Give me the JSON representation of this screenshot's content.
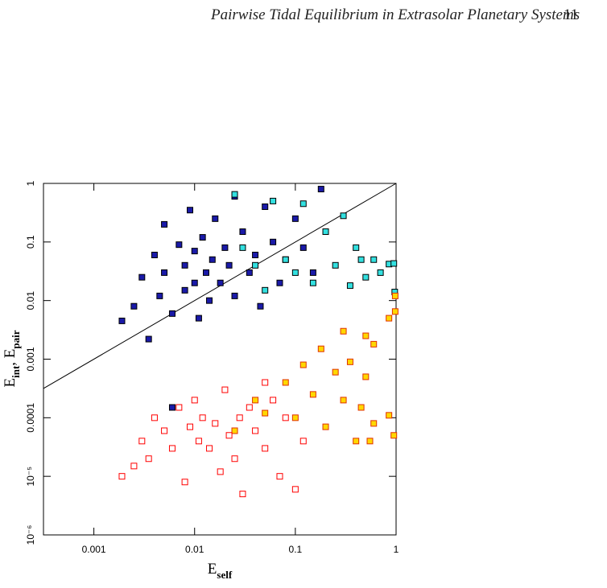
{
  "header": {
    "title": "Pairwise Tidal Equilibrium in Extrasolar Planetary Systems",
    "page": "11"
  },
  "chart_data": {
    "type": "scatter",
    "log_x": true,
    "log_y": true,
    "xlabel": {
      "text": "E",
      "sub": "self"
    },
    "ylabel": [
      {
        "text": "E",
        "sub": "int"
      },
      {
        "text": ", E",
        "sub": "pair"
      }
    ],
    "xlim": [
      0.000316,
      1
    ],
    "ylim": [
      1e-06,
      1
    ],
    "xticks": [
      0.001,
      0.01,
      0.1,
      1
    ],
    "yticks": [
      {
        "value": 1e-06,
        "label": "10⁻⁶"
      },
      {
        "value": 1e-05,
        "label": "10⁻⁵"
      },
      0.0001,
      0.001,
      0.01,
      0.1,
      1
    ],
    "line": {
      "x": [
        0.000316,
        1
      ],
      "y": [
        0.000316,
        1
      ],
      "color": "#000000"
    },
    "series": [
      {
        "color": "#1a1aa8",
        "filled": true,
        "edge": "#000000",
        "x": [
          0.0019,
          0.0025,
          0.003,
          0.0035,
          0.004,
          0.0045,
          0.005,
          0.005,
          0.006,
          0.007,
          0.008,
          0.008,
          0.009,
          0.01,
          0.01,
          0.011,
          0.012,
          0.013,
          0.014,
          0.015,
          0.016,
          0.018,
          0.02,
          0.022,
          0.025,
          0.025,
          0.03,
          0.035,
          0.04,
          0.045,
          0.05,
          0.06,
          0.07,
          0.08,
          0.1,
          0.12,
          0.15,
          0.18,
          0.006
        ],
        "values": [
          0.0045,
          0.008,
          0.025,
          0.0022,
          0.06,
          0.012,
          0.2,
          0.03,
          0.006,
          0.09,
          0.015,
          0.04,
          0.35,
          0.02,
          0.07,
          0.005,
          0.12,
          0.03,
          0.01,
          0.05,
          0.25,
          0.02,
          0.08,
          0.04,
          0.6,
          0.012,
          0.15,
          0.03,
          0.06,
          0.008,
          0.4,
          0.1,
          0.02,
          0.05,
          0.25,
          0.08,
          0.03,
          0.8,
          0.00015
        ]
      },
      {
        "color": "#33e0e0",
        "filled": true,
        "edge": "#000000",
        "x": [
          0.025,
          0.03,
          0.04,
          0.05,
          0.06,
          0.08,
          0.1,
          0.12,
          0.15,
          0.2,
          0.25,
          0.3,
          0.35,
          0.4,
          0.45,
          0.5,
          0.6,
          0.7,
          0.85,
          0.97,
          0.95
        ],
        "values": [
          0.65,
          0.08,
          0.04,
          0.015,
          0.5,
          0.05,
          0.03,
          0.45,
          0.02,
          0.15,
          0.04,
          0.28,
          0.018,
          0.08,
          0.05,
          0.025,
          0.05,
          0.03,
          0.042,
          0.014,
          0.043
        ]
      },
      {
        "color": "#ffd800",
        "filled": true,
        "edge": "#e03000",
        "x": [
          0.025,
          0.04,
          0.05,
          0.08,
          0.1,
          0.12,
          0.15,
          0.18,
          0.2,
          0.25,
          0.3,
          0.3,
          0.35,
          0.4,
          0.45,
          0.5,
          0.5,
          0.55,
          0.6,
          0.6,
          0.85,
          0.85,
          0.95,
          0.98,
          0.98
        ],
        "values": [
          6e-05,
          0.0002,
          0.00012,
          0.0004,
          0.0001,
          0.0008,
          0.00025,
          0.0015,
          7e-05,
          0.0006,
          0.0002,
          0.003,
          0.0009,
          4e-05,
          0.00015,
          0.0025,
          0.0005,
          4e-05,
          0.0018,
          8e-05,
          0.005,
          0.00011,
          5e-05,
          0.0065,
          0.012
        ]
      },
      {
        "color": "#ff0000",
        "filled": false,
        "edge": "#ff0000",
        "x": [
          0.0019,
          0.0025,
          0.003,
          0.0035,
          0.004,
          0.005,
          0.006,
          0.007,
          0.008,
          0.009,
          0.01,
          0.011,
          0.012,
          0.014,
          0.016,
          0.018,
          0.02,
          0.022,
          0.025,
          0.028,
          0.03,
          0.035,
          0.04,
          0.05,
          0.06,
          0.07,
          0.08,
          0.1,
          0.12,
          0.05
        ],
        "values": [
          1e-05,
          1.5e-05,
          4e-05,
          2e-05,
          0.0001,
          6e-05,
          3e-05,
          0.00015,
          8e-06,
          7e-05,
          0.0002,
          4e-05,
          0.0001,
          3e-05,
          8e-05,
          1.2e-05,
          0.0003,
          5e-05,
          2e-05,
          0.0001,
          5e-06,
          0.00015,
          6e-05,
          3e-05,
          0.0002,
          1e-05,
          0.0001,
          6e-06,
          4e-05,
          0.0004
        ]
      }
    ]
  }
}
